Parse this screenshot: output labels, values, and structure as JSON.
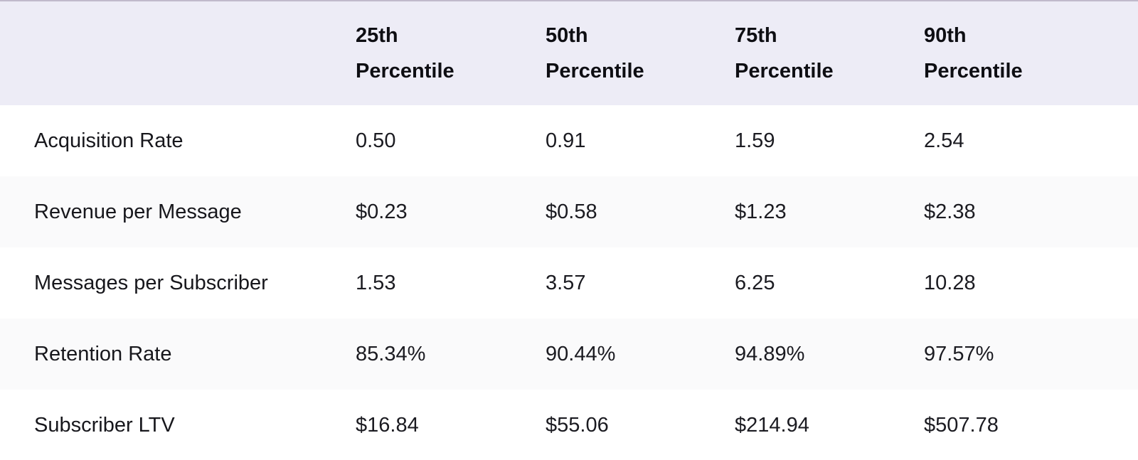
{
  "chart_data": {
    "type": "table",
    "title": "",
    "columns": [
      "",
      "25th Percentile",
      "50th Percentile",
      "75th Percentile",
      "90th Percentile"
    ],
    "rows": [
      {
        "label": "Acquisition Rate",
        "values": [
          "0.50",
          "0.91",
          "1.59",
          "2.54"
        ]
      },
      {
        "label": "Revenue per Message",
        "values": [
          "$0.23",
          "$0.58",
          "$1.23",
          "$2.38"
        ]
      },
      {
        "label": "Messages per Subscriber",
        "values": [
          "1.53",
          "3.57",
          "6.25",
          "10.28"
        ]
      },
      {
        "label": "Retention Rate",
        "values": [
          "85.34%",
          "90.44%",
          "94.89%",
          "97.57%"
        ]
      },
      {
        "label": "Subscriber LTV",
        "values": [
          "$16.84",
          "$55.06",
          "$214.94",
          "$507.78"
        ]
      }
    ]
  },
  "colors": {
    "header_background": "#edecf6",
    "top_border": "#c0bacb",
    "alt_row_background": "#fafafb",
    "row_background": "#ffffff",
    "header_text": "#0e0e13",
    "body_text": "#1b1b21"
  }
}
